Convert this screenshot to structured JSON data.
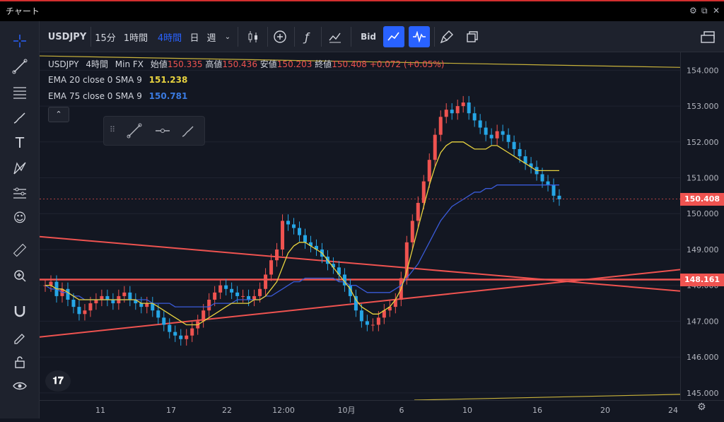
{
  "window": {
    "title": "チャート"
  },
  "toolbar": {
    "symbol": "USDJPY",
    "intervals": [
      "15分",
      "1時間",
      "4時間",
      "日",
      "週"
    ],
    "active_interval": "4時間",
    "bid_label": "Bid"
  },
  "legend": {
    "symbol": "USDJPY",
    "interval": "4時間",
    "source": "Min FX",
    "open_label": "始値",
    "open": "150.335",
    "high_label": "高値",
    "high": "150.436",
    "low_label": "安値",
    "low": "150.203",
    "close_label": "終値",
    "close": "150.408",
    "change": "+0.072 (+0.05%)",
    "ema20_label": "EMA 20 close 0 SMA 9",
    "ema20_value": "151.238",
    "ema75_label": "EMA 75 close 0 SMA 9",
    "ema75_value": "150.781"
  },
  "colors": {
    "up": "#ef5350",
    "down": "#26a6e6",
    "ema20": "#e8d33f",
    "ema75": "#3a5bd9",
    "trend": "#ef5350",
    "channel": "#c8b23a",
    "bg": "#131722"
  },
  "chart_data": {
    "type": "candlestick",
    "title": "USDJPY 4時間 Min FX",
    "y_range": [
      144.8,
      154.5
    ],
    "y_ticks": [
      "154.000",
      "153.000",
      "152.000",
      "151.000",
      "150.000",
      "149.000",
      "148.000",
      "147.000",
      "146.000",
      "145.000"
    ],
    "x_ticks": [
      "11",
      "17",
      "22",
      "12:00",
      "10月",
      "6",
      "10",
      "16",
      "20",
      "24"
    ],
    "current_price": "150.408",
    "horizontal_line": "148.161",
    "closes": [
      148.0,
      148.1,
      147.7,
      147.9,
      147.6,
      147.4,
      147.2,
      147.3,
      147.5,
      147.6,
      147.7,
      147.6,
      147.5,
      147.7,
      147.8,
      147.6,
      147.5,
      147.4,
      147.5,
      147.3,
      147.1,
      146.9,
      146.7,
      146.6,
      146.5,
      146.6,
      146.8,
      147.0,
      147.3,
      147.6,
      147.8,
      148.0,
      147.9,
      147.8,
      147.7,
      147.7,
      147.6,
      147.7,
      147.9,
      148.3,
      148.7,
      149.0,
      149.8,
      149.7,
      149.6,
      149.4,
      149.2,
      149.1,
      149.0,
      148.8,
      148.6,
      148.5,
      148.3,
      148.0,
      147.7,
      147.3,
      147.0,
      146.9,
      146.9,
      147.1,
      147.3,
      147.4,
      147.6,
      148.2,
      149.2,
      149.8,
      150.3,
      150.9,
      151.5,
      152.2,
      152.7,
      152.9,
      152.8,
      153.0,
      153.1,
      152.8,
      152.6,
      152.4,
      152.2,
      152.1,
      152.3,
      152.2,
      152.0,
      151.8,
      151.6,
      151.4,
      151.3,
      151.1,
      150.9,
      150.8,
      150.5,
      150.4
    ],
    "ema20": [
      148.0,
      148.0,
      147.9,
      147.9,
      147.8,
      147.7,
      147.6,
      147.6,
      147.6,
      147.6,
      147.6,
      147.6,
      147.6,
      147.6,
      147.6,
      147.6,
      147.6,
      147.5,
      147.5,
      147.5,
      147.4,
      147.3,
      147.2,
      147.1,
      147.0,
      146.9,
      146.9,
      146.9,
      147.0,
      147.1,
      147.2,
      147.3,
      147.4,
      147.5,
      147.5,
      147.5,
      147.5,
      147.6,
      147.6,
      147.7,
      147.9,
      148.1,
      148.5,
      148.9,
      149.1,
      149.2,
      149.2,
      149.1,
      149.0,
      148.9,
      148.7,
      148.5,
      148.3,
      148.1,
      147.9,
      147.6,
      147.4,
      147.3,
      147.2,
      147.2,
      147.3,
      147.4,
      147.6,
      147.9,
      148.4,
      149.0,
      149.6,
      150.2,
      150.8,
      151.3,
      151.7,
      151.9,
      152.0,
      152.0,
      152.0,
      151.9,
      151.8,
      151.8,
      151.8,
      151.9,
      151.9,
      151.8,
      151.7,
      151.6,
      151.5,
      151.4,
      151.3,
      151.2,
      151.2,
      151.2,
      151.2,
      151.2
    ],
    "ema75": [
      148.0,
      147.9,
      147.9,
      147.8,
      147.8,
      147.7,
      147.7,
      147.6,
      147.6,
      147.6,
      147.6,
      147.6,
      147.6,
      147.6,
      147.6,
      147.6,
      147.6,
      147.6,
      147.6,
      147.5,
      147.5,
      147.5,
      147.5,
      147.4,
      147.4,
      147.4,
      147.4,
      147.4,
      147.4,
      147.4,
      147.5,
      147.5,
      147.5,
      147.5,
      147.6,
      147.6,
      147.6,
      147.6,
      147.6,
      147.7,
      147.7,
      147.8,
      147.9,
      148.0,
      148.1,
      148.1,
      148.2,
      148.2,
      148.2,
      148.2,
      148.2,
      148.2,
      148.1,
      148.1,
      148.0,
      148.0,
      147.9,
      147.8,
      147.8,
      147.8,
      147.8,
      147.8,
      147.9,
      148.0,
      148.2,
      148.4,
      148.6,
      148.9,
      149.2,
      149.5,
      149.8,
      150.0,
      150.2,
      150.3,
      150.4,
      150.5,
      150.6,
      150.6,
      150.7,
      150.7,
      150.8,
      150.8,
      150.8,
      150.8,
      150.8,
      150.8,
      150.8,
      150.8,
      150.8,
      150.8,
      150.8,
      150.8
    ]
  }
}
